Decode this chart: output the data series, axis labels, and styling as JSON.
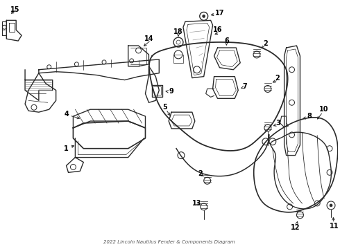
{
  "title": "2022 Lincoln Nautilus Fender & Components Diagram",
  "background_color": "#ffffff",
  "line_color": "#2a2a2a",
  "fig_width": 4.9,
  "fig_height": 3.6,
  "dpi": 100
}
